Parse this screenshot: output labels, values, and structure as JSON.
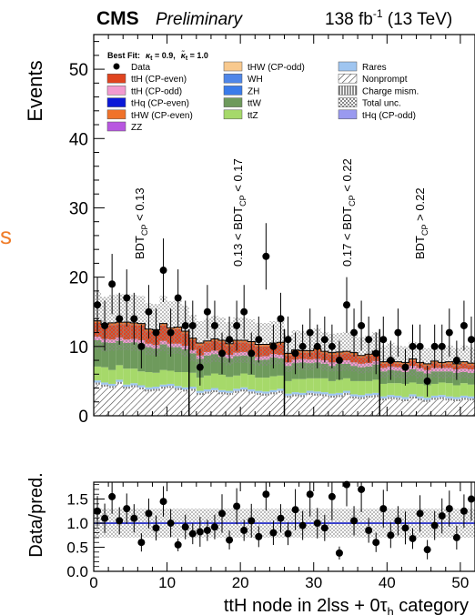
{
  "header": {
    "experiment": "CMS",
    "status": "Preliminary",
    "lumi": "138 fb",
    "lumi_sup": "-1",
    "energy": "(13 TeV)"
  },
  "page_fragment": "s",
  "colors": {
    "ttH_even": "#e0441f",
    "ttH_odd": "#f29ad0",
    "tHq_even": "#0a18d8",
    "tHW_even": "#f0722a",
    "ZZ": "#b857e0",
    "tHW_odd": "#f8c98e",
    "WH": "#4f86e8",
    "ZH": "#3a7bea",
    "ttW": "#6e9a5c",
    "ttZ": "#a6d96a",
    "Rares": "#9fc5f0",
    "tHq_odd": "#9a9af0",
    "data": "#000000",
    "ratio_line": "#1a22c8"
  },
  "chart_data": [
    {
      "type": "bar",
      "stacked": true,
      "title": "",
      "ylabel": "Events",
      "ylim": [
        0,
        55
      ],
      "yticks": [
        "0",
        "10",
        "20",
        "30",
        "40",
        "50"
      ],
      "xlim": [
        0,
        52
      ],
      "best_fit": {
        "prefix": "Best Fit:",
        "kappa_t": "κ",
        "kappa_t_sub": "t",
        "kappa_t_val": " = 0.9,",
        "kappa_tilde": "κ̃",
        "kappa_tilde_sub": "t",
        "kappa_tilde_val": " = 1.0"
      },
      "legend": [
        [
          "Data",
          "ttH (CP-even)",
          "ttH (CP-odd)",
          "tHq (CP-even)",
          "tHW (CP-even)",
          "ZZ"
        ],
        [
          "tHW (CP-odd)",
          "WH",
          "ZH",
          "ttW",
          "ttZ"
        ],
        [
          "Rares",
          "Nonprompt",
          "Charge mism.",
          "Total unc.",
          "tHq (CP-odd)"
        ]
      ],
      "regions": [
        {
          "text": "BDT",
          "sub": "CP",
          "rest": " < 0.13"
        },
        {
          "text": "0.13 < BDT",
          "sub": "CP",
          "rest": " < 0.17"
        },
        {
          "text": "0.17 < BDT",
          "sub": "CP",
          "rest": " < 0.22"
        },
        {
          "text": "BDT",
          "sub": "CP",
          "rest": " > 0.22"
        }
      ],
      "region_boundaries": [
        13,
        26,
        39
      ],
      "bins": [
        0,
        1,
        2,
        3,
        4,
        5,
        6,
        7,
        8,
        9,
        10,
        11,
        12,
        13,
        14,
        15,
        16,
        17,
        18,
        19,
        20,
        21,
        22,
        23,
        24,
        25,
        26,
        27,
        28,
        29,
        30,
        31,
        32,
        33,
        34,
        35,
        36,
        37,
        38,
        39,
        40,
        41,
        42,
        43,
        44,
        45,
        46,
        47,
        48,
        49,
        50,
        51
      ],
      "series": [
        {
          "name": "Nonprompt",
          "values": [
            4.5,
            4.2,
            4.0,
            4.6,
            3.9,
            4.1,
            3.8,
            3.5,
            3.6,
            3.9,
            4.0,
            3.7,
            3.5,
            3.6,
            3.0,
            3.2,
            3.4,
            3.1,
            3.0,
            3.3,
            3.5,
            3.2,
            3.0,
            2.9,
            3.1,
            3.3,
            2.6,
            2.8,
            2.7,
            3.0,
            2.9,
            2.8,
            2.6,
            2.7,
            3.0,
            2.5,
            2.4,
            2.6,
            2.7,
            2.2,
            2.4,
            2.3,
            2.1,
            2.5,
            2.2,
            2.0,
            2.3,
            2.4,
            2.2,
            2.1,
            2.3,
            2.2
          ]
        },
        {
          "name": "Charge mism.",
          "values": [
            0.3,
            0.3,
            0.3,
            0.3,
            0.3,
            0.3,
            0.3,
            0.3,
            0.3,
            0.3,
            0.3,
            0.3,
            0.3,
            0.3,
            0.3,
            0.3,
            0.3,
            0.3,
            0.3,
            0.3,
            0.3,
            0.3,
            0.3,
            0.3,
            0.3,
            0.3,
            0.3,
            0.3,
            0.3,
            0.3,
            0.3,
            0.3,
            0.3,
            0.3,
            0.3,
            0.3,
            0.3,
            0.3,
            0.3,
            0.3,
            0.3,
            0.3,
            0.3,
            0.3,
            0.3,
            0.3,
            0.3,
            0.3,
            0.3,
            0.3,
            0.3,
            0.3
          ]
        },
        {
          "name": "Rares",
          "values": [
            0.3,
            0.3,
            0.3,
            0.3,
            0.3,
            0.3,
            0.3,
            0.3,
            0.3,
            0.3,
            0.3,
            0.3,
            0.3,
            0.3,
            0.3,
            0.3,
            0.3,
            0.3,
            0.3,
            0.3,
            0.3,
            0.3,
            0.3,
            0.3,
            0.3,
            0.3,
            0.3,
            0.3,
            0.3,
            0.3,
            0.3,
            0.3,
            0.3,
            0.3,
            0.3,
            0.3,
            0.3,
            0.3,
            0.3,
            0.3,
            0.3,
            0.3,
            0.3,
            0.3,
            0.3,
            0.3,
            0.3,
            0.3,
            0.3,
            0.3,
            0.3,
            0.3
          ]
        },
        {
          "name": "ttZ",
          "values": [
            2.0,
            2.2,
            2.0,
            2.1,
            2.3,
            2.1,
            2.0,
            2.2,
            2.0,
            2.1,
            1.9,
            2.0,
            2.2,
            2.0,
            1.9,
            2.0,
            2.1,
            2.2,
            2.0,
            1.9,
            2.0,
            2.1,
            1.9,
            2.0,
            2.0,
            1.9,
            1.8,
            1.9,
            2.0,
            1.8,
            1.9,
            2.0,
            1.8,
            1.9,
            1.8,
            1.9,
            2.0,
            1.8,
            1.9,
            1.8,
            1.7,
            1.8,
            1.9,
            1.7,
            1.8,
            1.8,
            1.7,
            1.8,
            1.9,
            1.7,
            1.8,
            1.7
          ]
        },
        {
          "name": "ttW",
          "values": [
            3.8,
            3.6,
            3.9,
            3.5,
            3.7,
            3.8,
            4.0,
            3.6,
            3.5,
            3.7,
            3.4,
            3.6,
            3.3,
            2.8,
            2.7,
            2.9,
            2.8,
            2.6,
            2.7,
            2.8,
            2.6,
            2.7,
            2.5,
            2.6,
            2.7,
            2.5,
            2.2,
            2.3,
            2.4,
            2.2,
            2.3,
            2.1,
            2.2,
            2.3,
            2.1,
            2.2,
            2.0,
            2.1,
            2.2,
            1.8,
            1.9,
            1.8,
            1.7,
            1.9,
            1.8,
            1.7,
            1.8,
            1.6,
            1.7,
            1.8,
            1.6,
            1.7
          ]
        },
        {
          "name": "ttH (CP-odd)",
          "values": [
            0.5,
            0.5,
            0.5,
            0.5,
            0.5,
            0.5,
            0.5,
            0.5,
            0.5,
            0.5,
            0.5,
            0.5,
            0.5,
            0.5,
            0.5,
            0.5,
            0.5,
            0.5,
            0.5,
            0.5,
            0.5,
            0.5,
            0.5,
            0.5,
            0.5,
            0.5,
            0.5,
            0.5,
            0.5,
            0.5,
            0.5,
            0.5,
            0.5,
            0.5,
            0.5,
            0.5,
            0.5,
            0.5,
            0.5,
            0.5,
            0.5,
            0.5,
            0.5,
            0.5,
            0.5,
            0.5,
            0.5,
            0.5,
            0.5,
            0.5,
            0.5,
            0.5
          ]
        },
        {
          "name": "ttH (CP-even)",
          "values": [
            2.0,
            1.8,
            2.1,
            1.9,
            2.2,
            2.0,
            2.1,
            1.8,
            1.9,
            2.2,
            2.0,
            2.1,
            1.8,
            1.4,
            1.5,
            1.3,
            1.4,
            1.6,
            1.3,
            1.5,
            1.4,
            1.3,
            1.5,
            1.4,
            1.3,
            1.5,
            1.0,
            1.1,
            0.9,
            1.0,
            1.2,
            1.0,
            1.1,
            0.9,
            1.0,
            1.1,
            0.9,
            1.0,
            1.1,
            0.6,
            0.7,
            0.5,
            0.6,
            0.7,
            0.5,
            0.6,
            0.7,
            0.5,
            0.6,
            0.5,
            0.7,
            0.6
          ]
        },
        {
          "name": "tHW (CP-even)",
          "values": [
            0.3,
            0.3,
            0.3,
            0.3,
            0.3,
            0.3,
            0.3,
            0.3,
            0.3,
            0.3,
            0.3,
            0.3,
            0.3,
            0.3,
            0.3,
            0.3,
            0.3,
            0.3,
            0.3,
            0.3,
            0.3,
            0.3,
            0.3,
            0.3,
            0.3,
            0.3,
            0.3,
            0.3,
            0.3,
            0.3,
            0.3,
            0.3,
            0.3,
            0.3,
            0.3,
            0.3,
            0.3,
            0.3,
            0.3,
            0.3,
            0.3,
            0.3,
            0.3,
            0.3,
            0.3,
            0.3,
            0.3,
            0.3,
            0.3,
            0.3,
            0.3,
            0.3
          ]
        }
      ],
      "data_points": {
        "x": [
          0.5,
          1.5,
          2.5,
          3.5,
          4.5,
          5.5,
          6.5,
          7.5,
          8.5,
          9.5,
          10.5,
          11.5,
          12.5,
          13.5,
          14.5,
          15.5,
          16.5,
          17.5,
          18.5,
          19.5,
          20.5,
          21.5,
          22.5,
          23.5,
          24.5,
          25.5,
          26.5,
          27.5,
          28.5,
          29.5,
          30.5,
          31.5,
          32.5,
          33.5,
          34.5,
          35.5,
          36.5,
          37.5,
          38.5,
          39.5,
          40.5,
          41.5,
          42.5,
          43.5,
          44.5,
          45.5,
          46.5,
          47.5,
          48.5,
          49.5,
          50.5,
          51.5
        ],
        "y": [
          16,
          13,
          19,
          14,
          17,
          14,
          10,
          15,
          12,
          21,
          12,
          17,
          13,
          13,
          7,
          15,
          13,
          9,
          11,
          13,
          15,
          9,
          11,
          23,
          10,
          14,
          11,
          9,
          10,
          12,
          10,
          11,
          10,
          8,
          16,
          12,
          13,
          11,
          9,
          11,
          8,
          12,
          7,
          10,
          10,
          5,
          10,
          10,
          12,
          8,
          13,
          11
        ]
      },
      "total_unc_relative": 0.3
    },
    {
      "type": "scatter",
      "ylabel": "Data/pred.",
      "xlabel": "ttH node in 2lss + 0τ",
      "xlabel_sub": "h",
      "xlabel_rest": " category",
      "ylim": [
        0,
        1.85
      ],
      "yticks": [
        "0.0",
        "0.5",
        "1.0",
        "1.5"
      ],
      "xticks": [
        "0",
        "10",
        "20",
        "30",
        "40",
        "50"
      ],
      "xlim": [
        0,
        52
      ],
      "reference_line": 1.0,
      "data_points": {
        "x": [
          0.5,
          1.5,
          2.5,
          3.5,
          4.5,
          5.5,
          6.5,
          7.5,
          8.5,
          9.5,
          10.5,
          11.5,
          12.5,
          13.5,
          14.5,
          15.5,
          16.5,
          17.5,
          18.5,
          19.5,
          20.5,
          21.5,
          22.5,
          23.5,
          24.5,
          25.5,
          26.5,
          27.5,
          28.5,
          29.5,
          30.5,
          31.5,
          32.5,
          33.5,
          34.5,
          35.5,
          36.5,
          37.5,
          38.5,
          39.5,
          40.5,
          41.5,
          42.5,
          43.5,
          44.5,
          45.5,
          46.5,
          47.5,
          48.5,
          49.5,
          50.5,
          51.5
        ],
        "y": [
          1.25,
          1.1,
          1.55,
          1.05,
          1.3,
          1.1,
          0.6,
          1.2,
          0.9,
          1.45,
          1.0,
          0.55,
          0.92,
          0.78,
          0.82,
          0.85,
          0.92,
          1.2,
          0.65,
          1.35,
          0.85,
          1.05,
          0.72,
          1.6,
          0.8,
          1.1,
          0.78,
          1.28,
          0.95,
          1.6,
          1.0,
          0.9,
          1.55,
          0.38,
          1.8,
          1.05,
          1.7,
          0.85,
          0.6,
          1.3,
          0.75,
          1.05,
          0.9,
          0.68,
          1.2,
          0.45,
          0.95,
          1.15,
          1.3,
          0.7,
          1.25,
          1.5
        ]
      }
    }
  ]
}
